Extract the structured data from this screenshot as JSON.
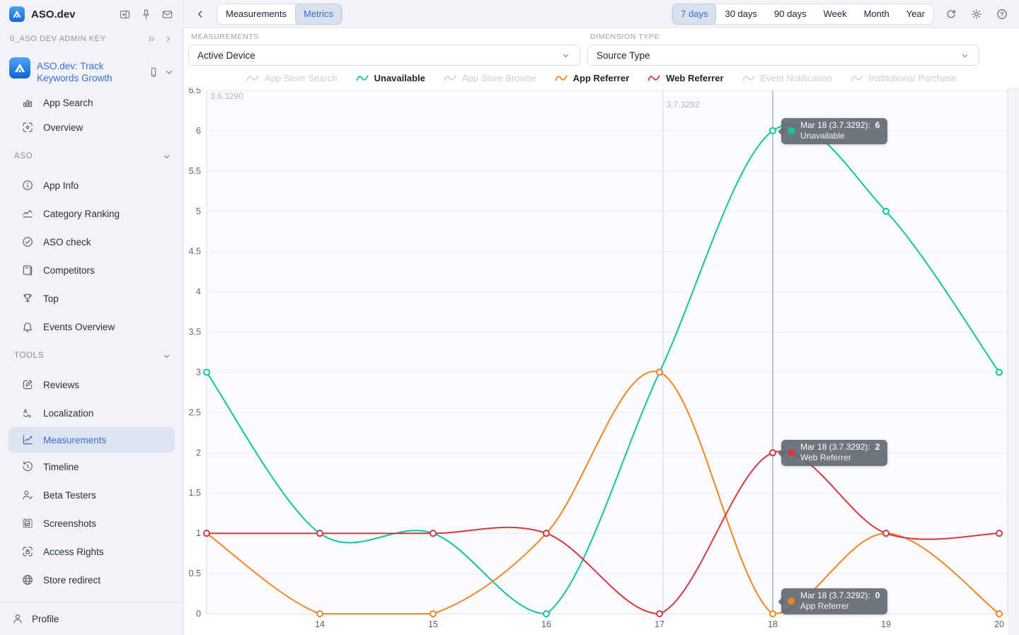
{
  "sidebar": {
    "brand": "ASO.dev",
    "admin_key": "0_ASO DEV ADMIN KEY",
    "app_name": "ASO.dev: Track Keywords Growth",
    "profile_label": "Profile",
    "nav": [
      {
        "type": "item",
        "icon": "bar-chart-icon",
        "label": "App Search",
        "compact": true
      },
      {
        "type": "item",
        "icon": "scan-icon",
        "label": "Overview"
      },
      {
        "type": "section",
        "label": "ASO"
      },
      {
        "type": "item",
        "icon": "info-icon",
        "label": "App Info"
      },
      {
        "type": "item",
        "icon": "chart-line-icon",
        "label": "Category Ranking"
      },
      {
        "type": "item",
        "icon": "check-circle-icon",
        "label": "ASO check"
      },
      {
        "type": "item",
        "icon": "book-icon",
        "label": "Competitors"
      },
      {
        "type": "item",
        "icon": "trophy-icon",
        "label": "Top"
      },
      {
        "type": "item",
        "icon": "bell-icon",
        "label": "Events Overview"
      },
      {
        "type": "section",
        "label": "TOOLS"
      },
      {
        "type": "item",
        "icon": "edit-icon",
        "label": "Reviews"
      },
      {
        "type": "item",
        "icon": "translate-icon",
        "label": "Localization"
      },
      {
        "type": "item",
        "icon": "measurements-chart-icon",
        "label": "Measurements",
        "selected": true
      },
      {
        "type": "item",
        "icon": "history-icon",
        "label": "Timeline"
      },
      {
        "type": "item",
        "icon": "user-check-icon",
        "label": "Beta Testers"
      },
      {
        "type": "item",
        "icon": "screenshot-icon",
        "label": "Screenshots"
      },
      {
        "type": "item",
        "icon": "lock-scan-icon",
        "label": "Access Rights"
      },
      {
        "type": "item",
        "icon": "globe-icon",
        "label": "Store redirect"
      }
    ]
  },
  "topbar": {
    "tabs": [
      {
        "label": "Measurements",
        "selected": false
      },
      {
        "label": "Metrics",
        "selected": true
      }
    ],
    "ranges": [
      {
        "label": "7 days",
        "selected": true
      },
      {
        "label": "30 days",
        "selected": false
      },
      {
        "label": "90 days",
        "selected": false
      },
      {
        "label": "Week",
        "selected": false
      },
      {
        "label": "Month",
        "selected": false
      },
      {
        "label": "Year",
        "selected": false
      }
    ]
  },
  "filters": {
    "measurements": {
      "label": "MEASUREMENTS",
      "value": "Active Device"
    },
    "dimension": {
      "label": "DIMENSION TYPE",
      "value": "Source Type"
    }
  },
  "colors": {
    "accent": "#3a6fd0",
    "teal": "#13c2a3",
    "orange": "#f5841f",
    "red": "#d5393e",
    "disabled": "#d2d5dc"
  },
  "chart_data": {
    "type": "line",
    "x": [
      13,
      14,
      15,
      16,
      17,
      18,
      19,
      20
    ],
    "x_tick_labels": [
      "14",
      "15",
      "16",
      "17",
      "18",
      "19",
      "20"
    ],
    "x_tick_values": [
      14,
      15,
      16,
      17,
      18,
      19,
      20
    ],
    "ylim": [
      0,
      6.5
    ],
    "y_ticks": [
      "0",
      "0.5",
      "1",
      "1.5",
      "2",
      "2.5",
      "3",
      "3.5",
      "4",
      "4.5",
      "5",
      "5.5",
      "6",
      "6.5"
    ],
    "grid": true,
    "legend_position": "top",
    "series": [
      {
        "name": "App Store Search",
        "enabled": false,
        "color": "#d2d5dc",
        "values": []
      },
      {
        "name": "Unavailable",
        "enabled": true,
        "color": "#13c2a3",
        "values": [
          3,
          1,
          1,
          0,
          3,
          6,
          5,
          3
        ]
      },
      {
        "name": "App Store Browse",
        "enabled": false,
        "color": "#d2d5dc",
        "values": []
      },
      {
        "name": "App Referrer",
        "enabled": true,
        "color": "#f5841f",
        "values": [
          1,
          0,
          0,
          1,
          3,
          0,
          1,
          0
        ]
      },
      {
        "name": "Web Referrer",
        "enabled": true,
        "color": "#d5393e",
        "values": [
          1,
          1,
          1,
          1,
          0,
          2,
          1,
          1
        ]
      },
      {
        "name": "Event Notification",
        "enabled": false,
        "color": "#d2d5dc",
        "values": []
      },
      {
        "name": "Institutional Purchase",
        "enabled": false,
        "color": "#d2d5dc",
        "values": []
      }
    ],
    "annotations": [
      {
        "label": "3.6.3290",
        "x": 13
      },
      {
        "label": "3.7.3292",
        "x": 17.03
      }
    ],
    "crosshair_x": 18,
    "tooltips": [
      {
        "series": "Unavailable",
        "date_label": "Mar 18 (3.7.3292):",
        "value": "6",
        "y": 6
      },
      {
        "series": "Web Referrer",
        "date_label": "Mar 18 (3.7.3292):",
        "value": "2",
        "y": 2
      },
      {
        "series": "App Referrer",
        "date_label": "Mar 18 (3.7.3292):",
        "value": "0",
        "y": 0
      }
    ]
  }
}
